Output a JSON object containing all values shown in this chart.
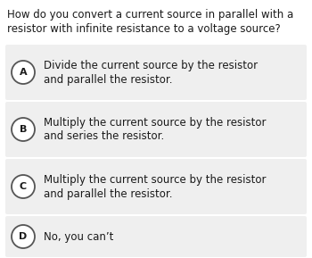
{
  "question_line1": "How do you convert a current source in parallel with a",
  "question_line2": "resistor with infinite resistance to a voltage source?",
  "options": [
    {
      "label": "A",
      "line1": "Divide the current source by the resistor",
      "line2": "and parallel the resistor."
    },
    {
      "label": "B",
      "line1": "Multiply the current source by the resistor",
      "line2": "and series the resistor."
    },
    {
      "label": "C",
      "line1": "Multiply the current source by the resistor",
      "line2": "and parallel the resistor."
    },
    {
      "label": "D",
      "line1": "No, you can’t",
      "line2": null
    }
  ],
  "bg_color": "#ffffff",
  "option_bg_color": "#efefef",
  "question_font_size": 8.5,
  "option_font_size": 8.5,
  "label_font_size": 8.0,
  "text_color": "#1a1a1a",
  "circle_edge_color": "#555555",
  "circle_face_color": "#ffffff",
  "fig_width": 3.5,
  "fig_height": 2.89,
  "dpi": 100
}
